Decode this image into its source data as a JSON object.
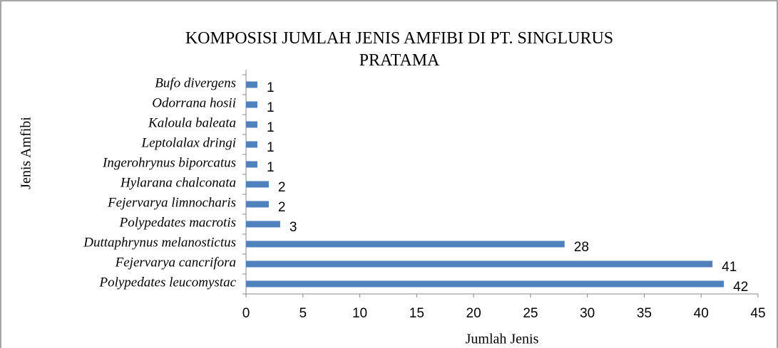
{
  "chart_data": {
    "type": "bar",
    "orientation": "horizontal",
    "title": "KOMPOSISI JUMLAH JENIS AMFIBI DI PT. SINGLURUS PRATAMA",
    "x_label": "Jumlah Jenis",
    "y_label": "Jenis Amfibi",
    "categories": [
      "Bufo divergens",
      "Odorrana hosii",
      "Kaloula baleata",
      "Leptolalax dringi",
      "Ingerohrynus biporcatus",
      "Hylarana chalconata",
      "Fejervarya limnocharis",
      "Polypedates macrotis",
      "Duttaphrynus melanostictus",
      "Fejervarya cancrifora",
      "Polypedates leucomystac"
    ],
    "values": [
      1,
      1,
      1,
      1,
      1,
      2,
      2,
      3,
      28,
      41,
      42
    ],
    "color": "#4f81bd",
    "xlim": [
      0,
      45
    ],
    "xticks": [
      0,
      5,
      10,
      15,
      20,
      25,
      30,
      35,
      40,
      45
    ]
  }
}
